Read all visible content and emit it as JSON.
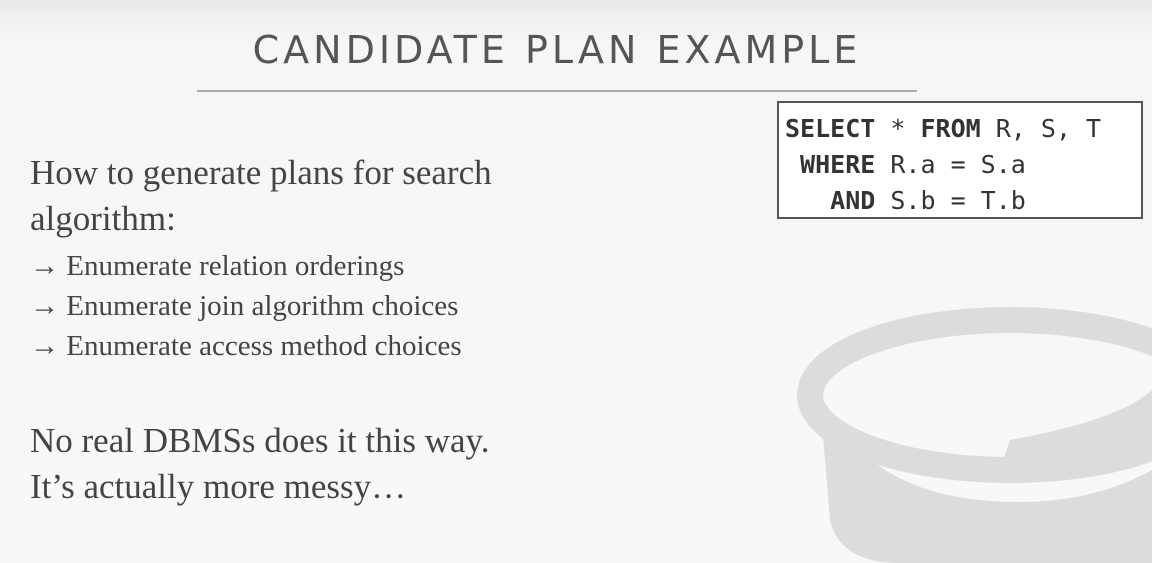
{
  "header": {
    "title": "CANDIDATE PLAN EXAMPLE"
  },
  "code": {
    "lines": [
      [
        {
          "text": "SELECT",
          "bold": true
        },
        {
          "text": " * ",
          "bold": false
        },
        {
          "text": "FROM",
          "bold": true
        },
        {
          "text": " R, S, T",
          "bold": false
        }
      ],
      [
        {
          "text": " WHERE",
          "bold": true
        },
        {
          "text": " R.a = S.a",
          "bold": false
        }
      ],
      [
        {
          "text": "   AND",
          "bold": true
        },
        {
          "text": " S.b = T.b",
          "bold": false
        }
      ]
    ]
  },
  "body": {
    "intro": "How to generate plans for search algorithm:",
    "bullets": [
      "→ Enumerate relation orderings",
      "→ Enumerate join algorithm choices",
      "→ Enumerate access method choices"
    ],
    "closing": [
      "No real DBMSs does it this way.",
      "It’s actually more messy…"
    ]
  }
}
